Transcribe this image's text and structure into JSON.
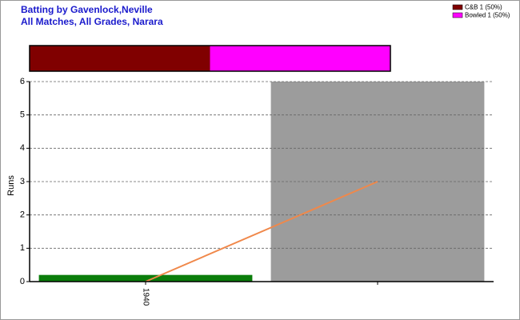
{
  "chart_data": {
    "type": "bar-line",
    "title": "Batting by Gavenlock,Neville",
    "subtitle": "All Matches, All Grades, Narara",
    "y_label": "Runs",
    "categories": [
      "1940",
      null
    ],
    "bars": {
      "values": [
        0.2,
        6
      ],
      "colors": [
        "#0b7d0b",
        "#9c9c9c"
      ]
    },
    "line": {
      "values": [
        0,
        3
      ],
      "color": "#f0884a"
    },
    "ylim": [
      0,
      6
    ],
    "yticks": [
      0,
      1,
      2,
      3,
      4,
      5,
      6
    ],
    "grid": true,
    "dismissals": [
      {
        "label": "C&B 1 (50%)",
        "value": 1,
        "color": "#800000"
      },
      {
        "label": "Bowled 1 (50%)",
        "value": 1,
        "color": "#ff00ff"
      }
    ],
    "legend": "top-right"
  }
}
